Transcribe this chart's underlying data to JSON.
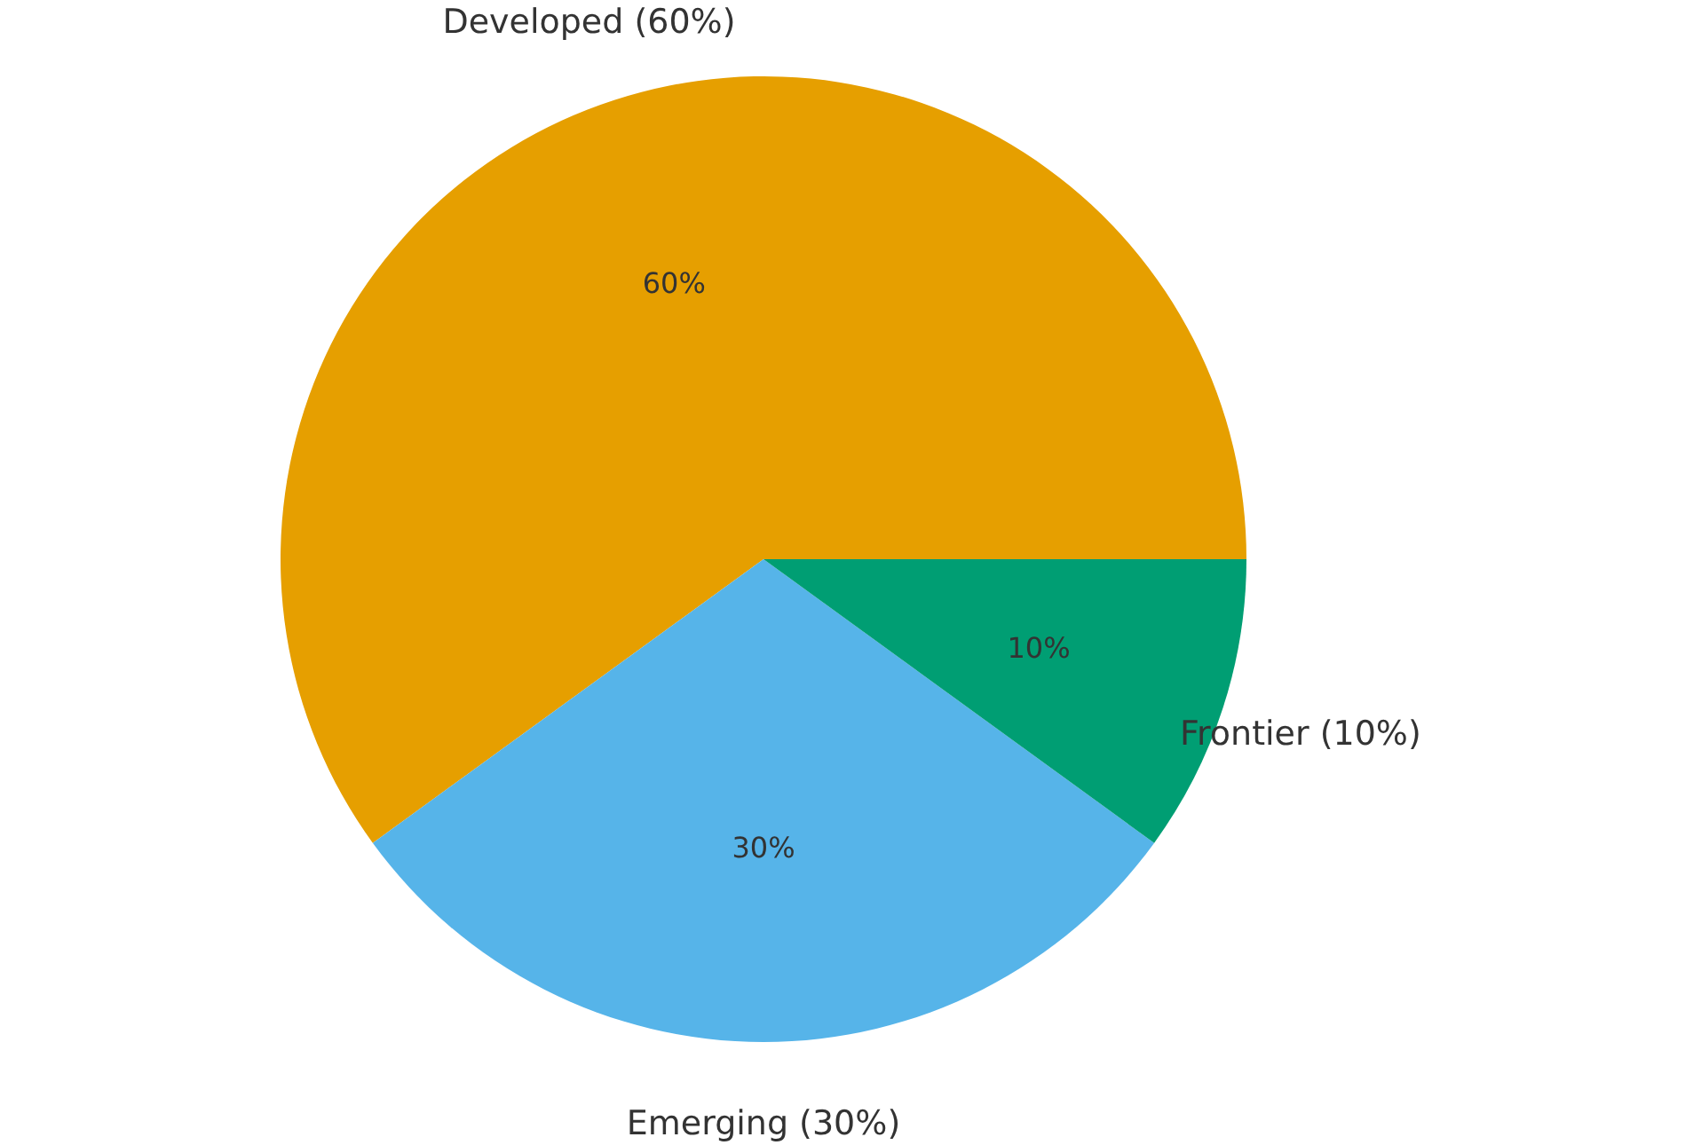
{
  "chart_data": {
    "type": "pie",
    "categories": [
      "Developed (60%)",
      "Emerging (30%)",
      "Frontier (10%)"
    ],
    "values": [
      60,
      30,
      10
    ],
    "colors": [
      "#e69f00",
      "#56b4e9",
      "#009e73"
    ],
    "value_labels": [
      "60%",
      "30%",
      "10%"
    ],
    "legend": false
  }
}
